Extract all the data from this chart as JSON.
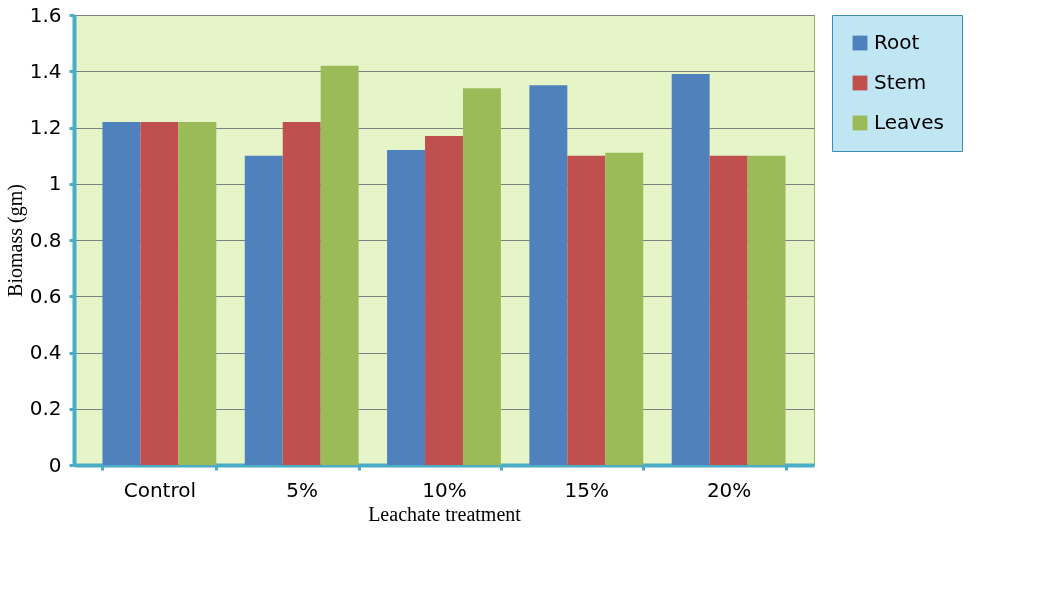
{
  "chart_data": {
    "type": "bar",
    "xlabel": "Leachate treatment",
    "ylabel": "Biomass (gm)",
    "categories": [
      "Control",
      "5%",
      "10%",
      "15%",
      "20%"
    ],
    "series": [
      {
        "name": "Root",
        "color": "#4f81bd",
        "values": [
          1.22,
          1.1,
          1.12,
          1.35,
          1.39
        ]
      },
      {
        "name": "Stem",
        "color": "#c0504d",
        "values": [
          1.22,
          1.22,
          1.17,
          1.1,
          1.1
        ]
      },
      {
        "name": "Leaves",
        "color": "#9bbb59",
        "values": [
          1.22,
          1.42,
          1.34,
          1.11,
          1.1
        ]
      }
    ],
    "ylim": [
      0,
      1.6
    ],
    "yticks": [
      0,
      0.2,
      0.4,
      0.6,
      0.8,
      1,
      1.2,
      1.4,
      1.6
    ],
    "grid": "y",
    "legend": "right"
  }
}
